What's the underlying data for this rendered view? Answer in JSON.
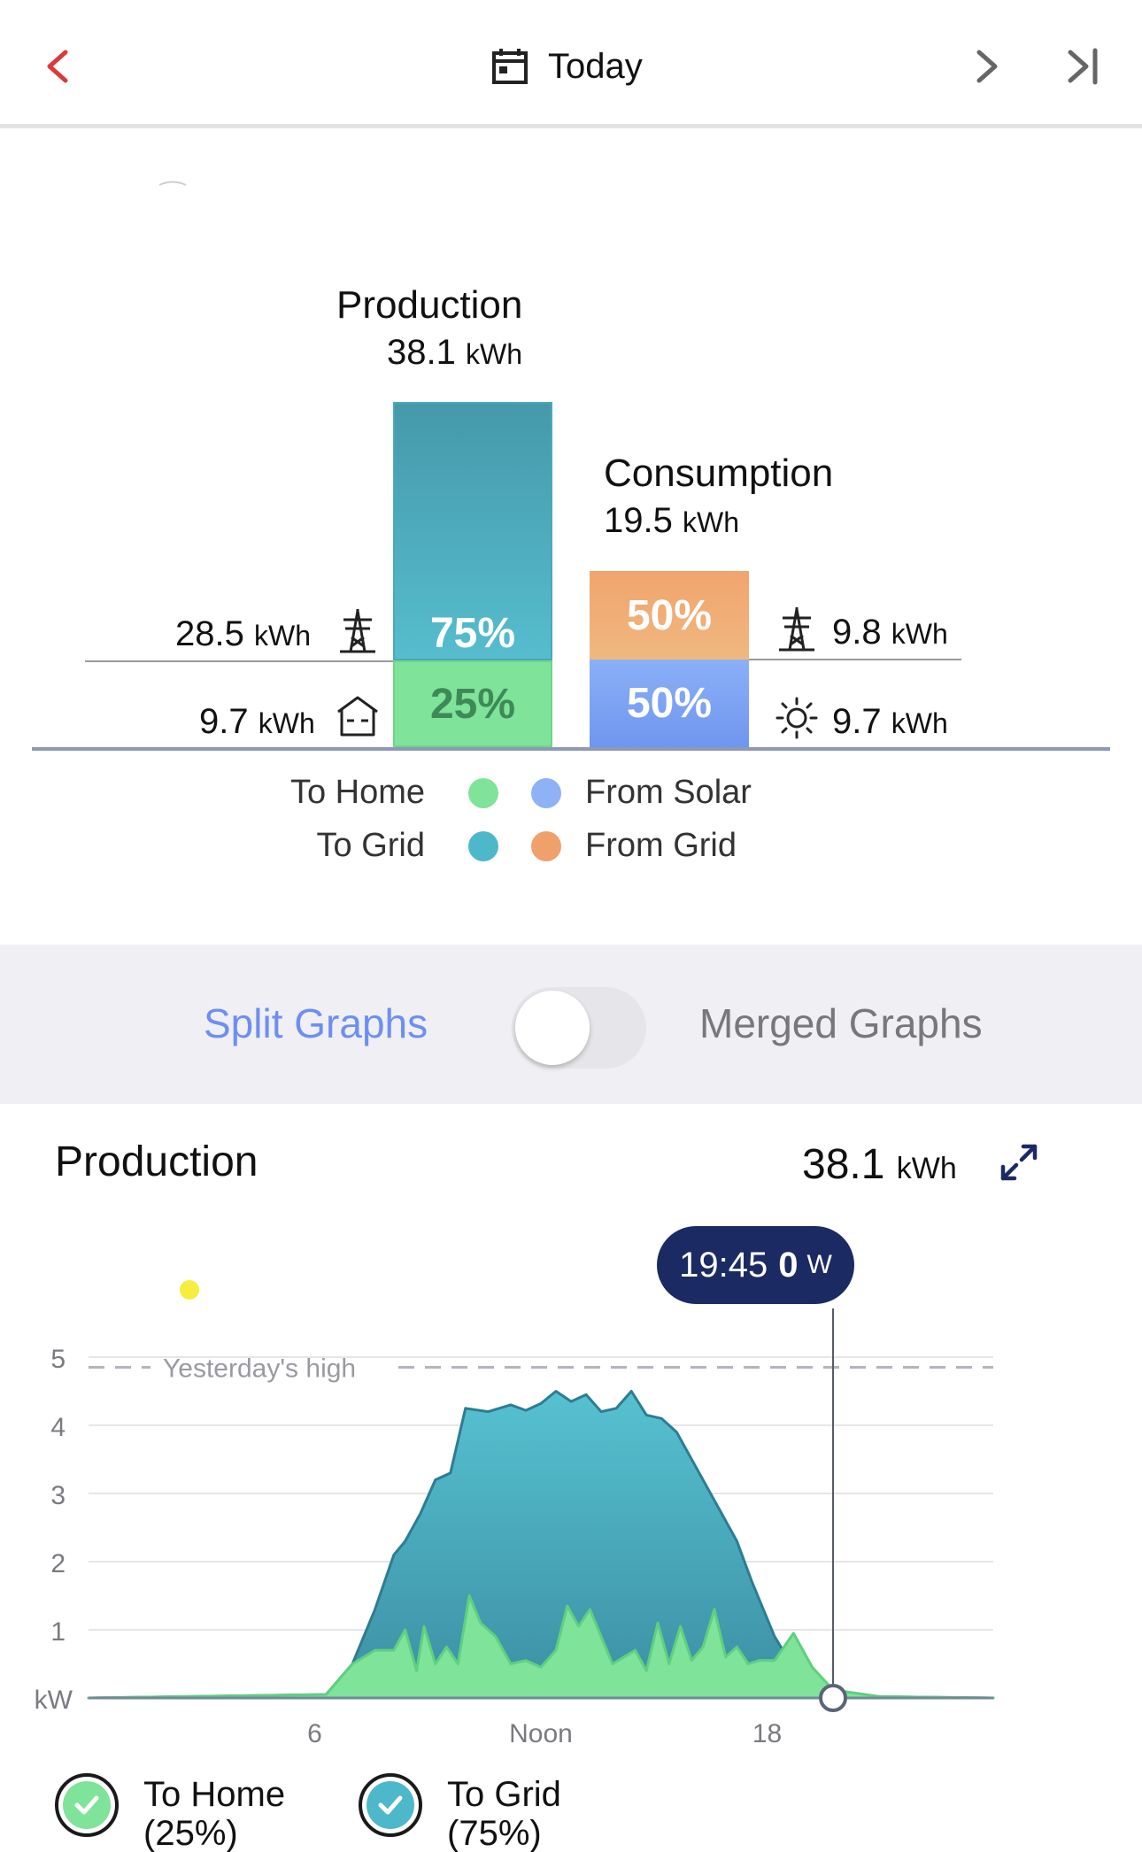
{
  "header": {
    "title": "Today"
  },
  "summary": {
    "production": {
      "label": "Production",
      "value": "38.1",
      "unit": "kWh"
    },
    "consumption": {
      "label": "Consumption",
      "value": "19.5",
      "unit": "kWh"
    },
    "production_bar": {
      "to_grid_pct": "75%",
      "to_home_pct": "25%"
    },
    "consumption_bar": {
      "from_grid_pct": "50%",
      "from_solar_pct": "50%"
    },
    "left_values": {
      "to_grid": {
        "value": "28.5",
        "unit": "kWh"
      },
      "to_home": {
        "value": "9.7",
        "unit": "kWh"
      }
    },
    "right_values": {
      "from_grid": {
        "value": "9.8",
        "unit": "kWh"
      },
      "from_solar": {
        "value": "9.7",
        "unit": "kWh"
      }
    },
    "legend": {
      "to_home": "To Home",
      "to_grid": "To Grid",
      "from_solar": "From Solar",
      "from_grid": "From Grid"
    }
  },
  "toggle": {
    "left": "Split Graphs",
    "right": "Merged Graphs",
    "merged_on": false
  },
  "production_graph": {
    "title": "Production",
    "total": "38.1",
    "unit": "kWh",
    "tooltip": {
      "time": "19:45",
      "value": "0",
      "unit": "W"
    },
    "reference_label": "Yesterday's high",
    "legend": [
      {
        "label_line1": "To Home",
        "label_line2": "(25%)"
      },
      {
        "label_line1": "To Grid",
        "label_line2": "(75%)"
      }
    ]
  },
  "colors": {
    "to_grid": "#4db8c9",
    "to_home": "#7fe39a",
    "from_grid": "#f0a06a",
    "from_solar": "#7ea6f5",
    "accent_red": "#d93b3b",
    "toggle_active": "#6e8ff0",
    "tooltip_bg": "#1b2a63"
  },
  "chart_data": {
    "type": "area",
    "xlabel": "",
    "ylabel": "kW",
    "xlim": [
      0,
      24
    ],
    "ylim": [
      0,
      5
    ],
    "x_ticks": [
      6,
      12,
      18
    ],
    "x_tick_labels": [
      "6",
      "Noon",
      "18"
    ],
    "y_ticks": [
      1,
      2,
      3,
      4,
      5
    ],
    "y_tick_labels": [
      "1",
      "2",
      "3",
      "4",
      "5"
    ],
    "y_unit_label": "kW",
    "reference_line": {
      "label": "Yesterday's high",
      "value": 4.85
    },
    "cursor": {
      "x": 19.75,
      "y": 0
    },
    "series": [
      {
        "name": "To Home",
        "x": [
          0,
          6.3,
          7.0,
          7.6,
          8.1,
          8.4,
          8.7,
          8.9,
          9.2,
          9.5,
          9.8,
          10.1,
          10.4,
          10.8,
          11.2,
          11.6,
          12.0,
          12.4,
          12.7,
          13.0,
          13.3,
          13.6,
          13.9,
          14.2,
          14.5,
          14.8,
          15.1,
          15.4,
          15.7,
          16.0,
          16.3,
          16.6,
          16.9,
          17.2,
          17.5,
          17.8,
          18.2,
          18.7,
          19.2,
          19.75,
          21,
          24
        ],
        "y": [
          0,
          0.05,
          0.5,
          0.7,
          0.7,
          1.0,
          0.4,
          1.05,
          0.5,
          0.75,
          0.5,
          1.5,
          1.1,
          0.9,
          0.5,
          0.55,
          0.45,
          0.7,
          1.35,
          1.05,
          1.3,
          0.9,
          0.5,
          0.6,
          0.7,
          0.4,
          1.1,
          0.5,
          1.05,
          0.55,
          0.75,
          1.3,
          0.6,
          0.75,
          0.5,
          0.55,
          0.55,
          0.95,
          0.45,
          0.12,
          0.02,
          0
        ],
        "color": "#7fe39a"
      },
      {
        "name": "To Grid",
        "x": [
          0,
          6.3,
          7.0,
          7.6,
          8.1,
          8.4,
          8.8,
          9.2,
          9.6,
          10.0,
          10.6,
          11.2,
          11.6,
          12.0,
          12.4,
          12.8,
          13.2,
          13.6,
          14.0,
          14.4,
          14.8,
          15.2,
          15.6,
          16.0,
          16.4,
          16.8,
          17.2,
          17.6,
          18.2,
          18.7,
          19.2,
          19.75,
          21,
          24
        ],
        "y": [
          0,
          0.05,
          0.5,
          1.3,
          2.1,
          2.3,
          2.7,
          3.2,
          3.3,
          4.25,
          4.2,
          4.3,
          4.22,
          4.32,
          4.5,
          4.35,
          4.45,
          4.2,
          4.25,
          4.5,
          4.15,
          4.1,
          3.9,
          3.5,
          3.1,
          2.7,
          2.3,
          1.7,
          0.9,
          0.45,
          0.15,
          0.05,
          0.02,
          0
        ],
        "color": "#4db8c9"
      }
    ]
  }
}
